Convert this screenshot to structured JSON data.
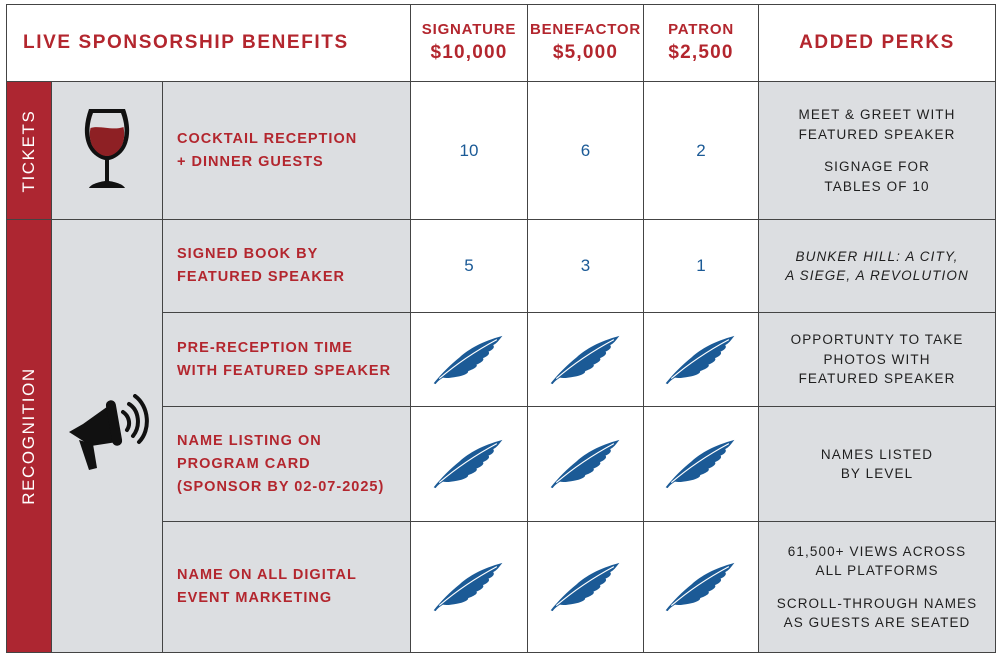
{
  "header": {
    "title": "LIVE SPONSORSHIP BENEFITS",
    "tiers": [
      {
        "name": "SIGNATURE",
        "price": "$10,000"
      },
      {
        "name": "BENEFACTOR",
        "price": "$5,000"
      },
      {
        "name": "PATRON",
        "price": "$2,500"
      }
    ],
    "perks_heading": "ADDED PERKS"
  },
  "sections": {
    "tickets": {
      "label": "TICKETS",
      "icon": "wine-glass-icon"
    },
    "recognition": {
      "label": "RECOGNITION",
      "icon": "megaphone-icon"
    }
  },
  "rows": [
    {
      "benefit": [
        "COCKTAIL RECEPTION",
        "+ DINNER GUESTS"
      ],
      "values": [
        "10",
        "6",
        "2"
      ],
      "perks": [
        [
          "MEET & GREET WITH",
          "FEATURED SPEAKER"
        ],
        [
          "SIGNAGE FOR",
          "TABLES OF 10"
        ]
      ]
    },
    {
      "benefit": [
        "SIGNED BOOK BY",
        "FEATURED SPEAKER"
      ],
      "values": [
        "5",
        "3",
        "1"
      ],
      "perks": [
        [
          "BUNKER HILL: A CITY,",
          "A SIEGE, A REVOLUTION"
        ]
      ]
    },
    {
      "benefit": [
        "PRE-RECEPTION TIME",
        "WITH FEATURED SPEAKER"
      ],
      "values": [
        "quill-icon",
        "quill-icon",
        "quill-icon"
      ],
      "perks": [
        [
          "OPPORTUNTY TO TAKE",
          "PHOTOS WITH",
          "FEATURED SPEAKER"
        ]
      ]
    },
    {
      "benefit": [
        "NAME LISTING ON",
        "PROGRAM CARD",
        "(SPONSOR BY 02-07-2025)"
      ],
      "values": [
        "quill-icon",
        "quill-icon",
        "quill-icon"
      ],
      "perks": [
        [
          "NAMES LISTED",
          "BY LEVEL"
        ]
      ]
    },
    {
      "benefit": [
        "NAME ON ALL DIGITAL",
        "EVENT MARKETING"
      ],
      "values": [
        "quill-icon",
        "quill-icon",
        "quill-icon"
      ],
      "perks": [
        [
          "61,500+ VIEWS ACROSS",
          "ALL PLATFORMS"
        ],
        [
          "SCROLL-THROUGH NAMES",
          "AS GUESTS ARE SEATED"
        ]
      ]
    }
  ],
  "colors": {
    "accent_red": "#ad2631",
    "value_blue": "#1b5a96",
    "row_gray": "#dcdee1"
  }
}
